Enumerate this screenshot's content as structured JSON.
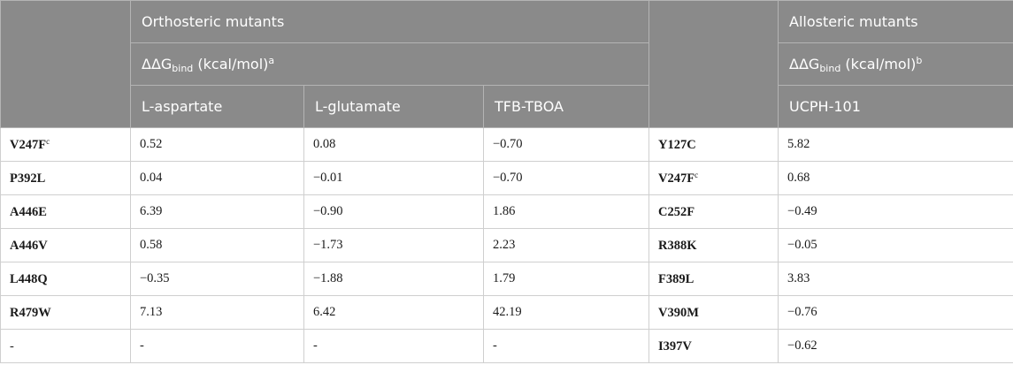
{
  "header": {
    "orthosteric_title": "Orthosteric mutants",
    "allosteric_title": "Allosteric mutants",
    "ddg_prefix": "ΔΔG",
    "ddg_sub": "bind",
    "ddg_units": " (kcal/mol)",
    "ortho_footnote": "a",
    "allo_footnote": "b",
    "col_aspartate": "L-aspartate",
    "col_glutamate": "L-glutamate",
    "col_tfb": "TFB-TBOA",
    "col_ucph": "UCPH-101"
  },
  "rows": [
    {
      "ortho_mutant": "V247F",
      "ortho_sup": "c",
      "asp": "0.52",
      "glu": "0.08",
      "tfb": "−0.70",
      "allo_mutant": "Y127C",
      "allo_sup": "",
      "ucph": "5.82"
    },
    {
      "ortho_mutant": "P392L",
      "ortho_sup": "",
      "asp": "0.04",
      "glu": "−0.01",
      "tfb": "−0.70",
      "allo_mutant": "V247F",
      "allo_sup": "c",
      "ucph": "0.68"
    },
    {
      "ortho_mutant": "A446E",
      "ortho_sup": "",
      "asp": "6.39",
      "glu": "−0.90",
      "tfb": "1.86",
      "allo_mutant": "C252F",
      "allo_sup": "",
      "ucph": "−0.49"
    },
    {
      "ortho_mutant": "A446V",
      "ortho_sup": "",
      "asp": "0.58",
      "glu": "−1.73",
      "tfb": "2.23",
      "allo_mutant": "R388K",
      "allo_sup": "",
      "ucph": "−0.05"
    },
    {
      "ortho_mutant": "L448Q",
      "ortho_sup": "",
      "asp": "−0.35",
      "glu": "−1.88",
      "tfb": "1.79",
      "allo_mutant": "F389L",
      "allo_sup": "",
      "ucph": "3.83"
    },
    {
      "ortho_mutant": "R479W",
      "ortho_sup": "",
      "asp": "7.13",
      "glu": "6.42",
      "tfb": "42.19",
      "allo_mutant": "V390M",
      "allo_sup": "",
      "ucph": "−0.76"
    },
    {
      "ortho_mutant": "-",
      "ortho_sup": "",
      "asp": "-",
      "glu": "-",
      "tfb": "-",
      "allo_mutant": "I397V",
      "allo_sup": "",
      "ucph": "−0.62"
    }
  ]
}
